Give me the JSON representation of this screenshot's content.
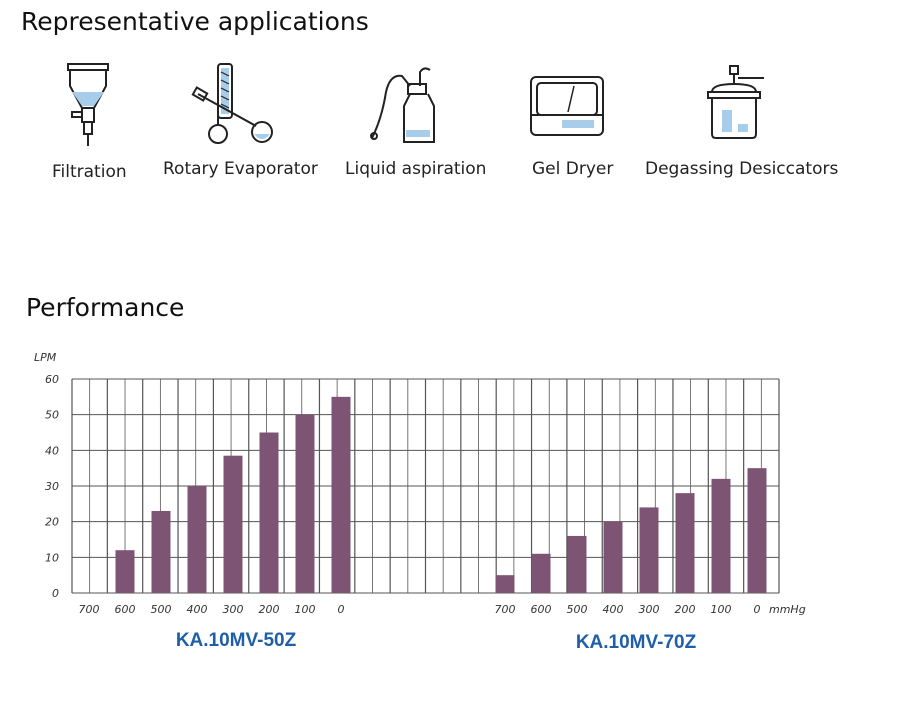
{
  "apps_title": "Representative applications",
  "perf_title": "Performance",
  "applications": [
    {
      "label": "Filtration",
      "icon": "filtration-icon"
    },
    {
      "label": "Rotary Evaporator",
      "icon": "rotary-evaporator-icon"
    },
    {
      "label": "Liquid aspiration",
      "icon": "liquid-aspiration-icon"
    },
    {
      "label": "Gel Dryer",
      "icon": "gel-dryer-icon"
    },
    {
      "label": "Degassing Desiccators",
      "icon": "desiccator-icon"
    }
  ],
  "colors": {
    "bar": "#7e5474",
    "model_label": "#1f5fa8",
    "icon_fill": "#a8cdea",
    "grid": "#555555"
  },
  "chart_data": [
    {
      "type": "bar",
      "title": "KA.10MV-50Z",
      "ylabel": "LPM",
      "xlabel": "",
      "ylim": [
        0,
        60
      ],
      "yticks": [
        0,
        10,
        20,
        30,
        40,
        50,
        60
      ],
      "categories": [
        "700",
        "600",
        "500",
        "400",
        "300",
        "200",
        "100",
        "0"
      ],
      "values": [
        0,
        12,
        23,
        30,
        38.5,
        45,
        50,
        55
      ]
    },
    {
      "type": "bar",
      "title": "KA.10MV-70Z",
      "ylabel": "LPM",
      "xlabel": "mmHg",
      "ylim": [
        0,
        60
      ],
      "yticks": [
        0,
        10,
        20,
        30,
        40,
        50,
        60
      ],
      "categories": [
        "700",
        "600",
        "500",
        "400",
        "300",
        "200",
        "100",
        "0"
      ],
      "values": [
        5,
        11,
        16,
        20,
        24,
        28,
        32,
        35
      ]
    }
  ]
}
